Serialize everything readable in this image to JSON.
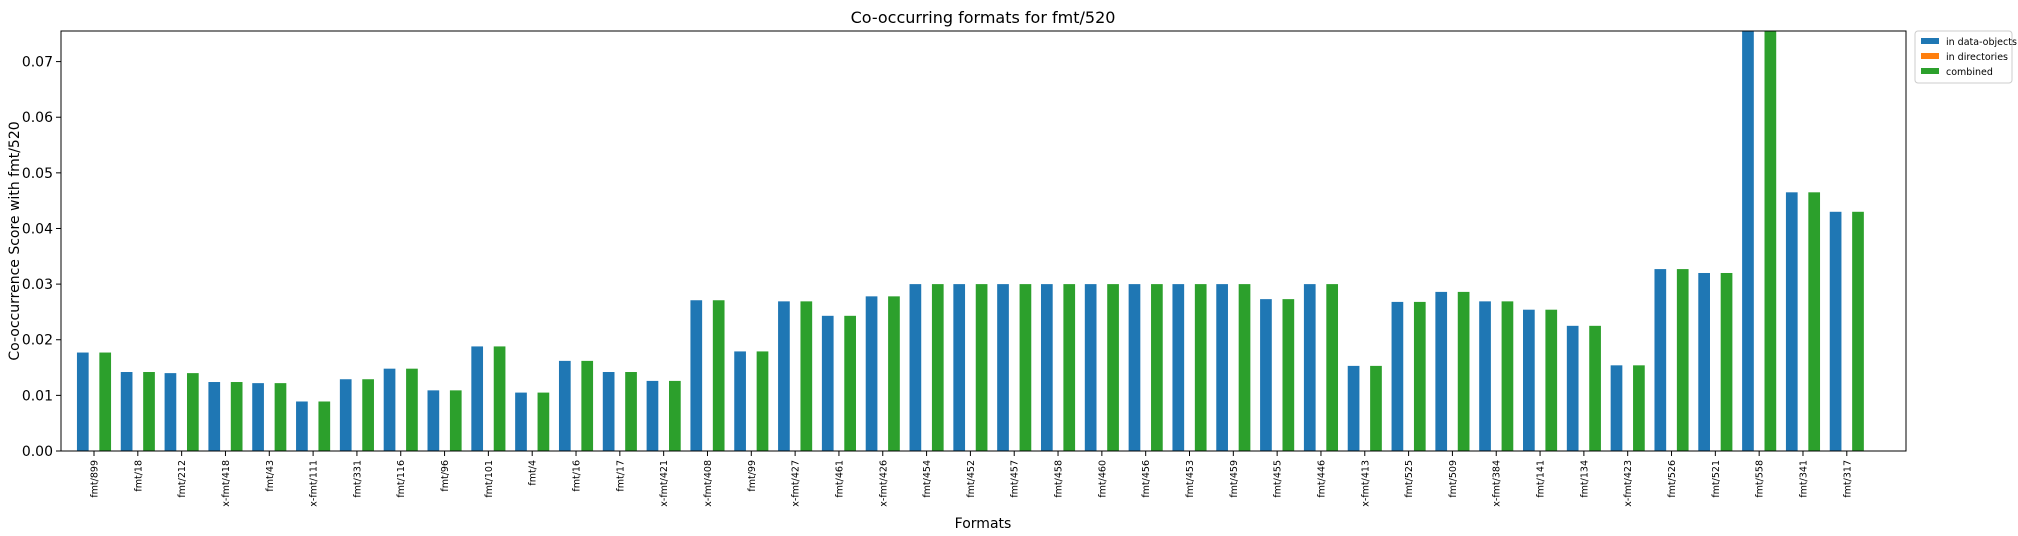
{
  "chart_data": {
    "type": "bar",
    "title": "Co-occurring formats for fmt/520",
    "xlabel": "Formats",
    "ylabel": "Co-occurrence Score with fmt/520",
    "ylim": [
      0,
      0.0755
    ],
    "yticks": [
      "0.00",
      "0.01",
      "0.02",
      "0.03",
      "0.04",
      "0.05",
      "0.06",
      "0.07"
    ],
    "legend_position": "outside-top-right",
    "categories": [
      "fmt/899",
      "fmt/18",
      "fmt/212",
      "x-fmt/418",
      "fmt/43",
      "x-fmt/111",
      "fmt/331",
      "fmt/116",
      "fmt/96",
      "fmt/101",
      "fmt/4",
      "fmt/16",
      "fmt/17",
      "x-fmt/421",
      "x-fmt/408",
      "fmt/99",
      "x-fmt/427",
      "fmt/461",
      "x-fmt/426",
      "fmt/454",
      "fmt/452",
      "fmt/457",
      "fmt/458",
      "fmt/460",
      "fmt/456",
      "fmt/453",
      "fmt/459",
      "fmt/455",
      "fmt/446",
      "x-fmt/413",
      "fmt/525",
      "fmt/509",
      "x-fmt/384",
      "fmt/141",
      "fmt/134",
      "x-fmt/423",
      "fmt/526",
      "fmt/521",
      "fmt/558",
      "fmt/341",
      "fmt/317"
    ],
    "series": [
      {
        "name": "in data-objects",
        "color": "#1f77b4",
        "values": [
          0.0177,
          0.0142,
          0.014,
          0.0124,
          0.0122,
          0.0089,
          0.0129,
          0.0148,
          0.0109,
          0.0188,
          0.0105,
          0.0162,
          0.0142,
          0.0126,
          0.0271,
          0.0179,
          0.0269,
          0.0243,
          0.0278,
          0.03,
          0.03,
          0.03,
          0.03,
          0.03,
          0.03,
          0.03,
          0.03,
          0.0273,
          0.03,
          0.0153,
          0.0268,
          0.0286,
          0.0269,
          0.0254,
          0.0225,
          0.0154,
          0.0327,
          0.032,
          0.0755,
          0.0465,
          0.043
        ]
      },
      {
        "name": "in directories",
        "color": "#ff7f0e",
        "values": [
          0,
          0,
          0,
          0,
          0,
          0,
          0,
          0,
          0,
          0,
          0,
          0,
          0,
          0,
          0,
          0,
          0,
          0,
          0,
          0,
          0,
          0,
          0,
          0,
          0,
          0,
          0,
          0,
          0,
          0,
          0,
          0,
          0,
          0,
          0,
          0,
          0,
          0,
          0,
          0,
          0
        ]
      },
      {
        "name": "combined",
        "color": "#2ca02c",
        "values": [
          0.0177,
          0.0142,
          0.014,
          0.0124,
          0.0122,
          0.0089,
          0.0129,
          0.0148,
          0.0109,
          0.0188,
          0.0105,
          0.0162,
          0.0142,
          0.0126,
          0.0271,
          0.0179,
          0.0269,
          0.0243,
          0.0278,
          0.03,
          0.03,
          0.03,
          0.03,
          0.03,
          0.03,
          0.03,
          0.03,
          0.0273,
          0.03,
          0.0153,
          0.0268,
          0.0286,
          0.0269,
          0.0254,
          0.0225,
          0.0154,
          0.0327,
          0.032,
          0.0755,
          0.0465,
          0.043
        ]
      }
    ]
  }
}
